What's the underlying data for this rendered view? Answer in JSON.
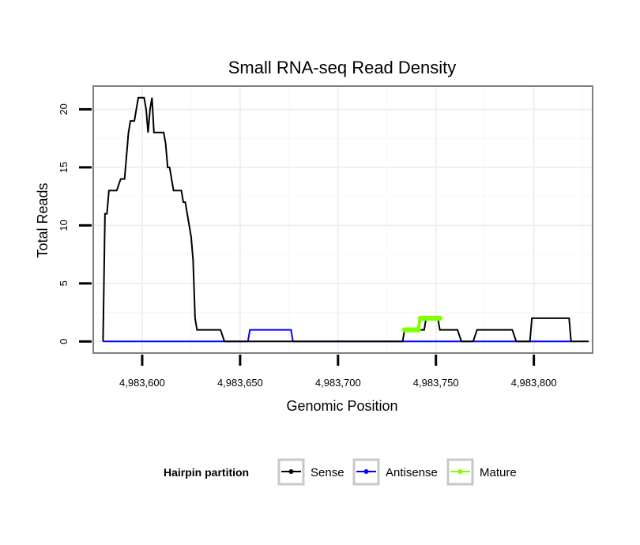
{
  "chart_data": {
    "type": "line",
    "title": "Small RNA-seq Read Density",
    "xlabel": "Genomic Position",
    "ylabel": "Total Reads",
    "xlim": [
      4983575,
      4983830
    ],
    "ylim": [
      -1,
      22
    ],
    "x_ticks": [
      4983600,
      4983650,
      4983700,
      4983750,
      4983800
    ],
    "x_tick_labels": [
      "4,983,600",
      "4,983,650",
      "4,983,700",
      "4,983,750",
      "4,983,800"
    ],
    "y_ticks": [
      0,
      5,
      10,
      15,
      20
    ],
    "y_tick_labels": [
      "0",
      "5",
      "10",
      "15",
      "20"
    ],
    "grid": true,
    "legend": {
      "title": "Hairpin partition",
      "position": "bottom",
      "entries": [
        "Sense",
        "Antisense",
        "Mature"
      ]
    },
    "series": [
      {
        "name": "Sense",
        "color": "#000000",
        "x": [
          4983580,
          4983581,
          4983582,
          4983583,
          4983585,
          4983587,
          4983589,
          4983590,
          4983591,
          4983592,
          4983593,
          4983594,
          4983596,
          4983597,
          4983598,
          4983599,
          4983600,
          4983601,
          4983602,
          4983603,
          4983604,
          4983605,
          4983606,
          4983607,
          4983611,
          4983612,
          4983613,
          4983614,
          4983615,
          4983616,
          4983618,
          4983619,
          4983620,
          4983621,
          4983622,
          4983623,
          4983624,
          4983625,
          4983626,
          4983627,
          4983628,
          4983629,
          4983630,
          4983632,
          4983635,
          4983640,
          4983642,
          4983645,
          4983660,
          4983680,
          4983700,
          4983720,
          4983733,
          4983734,
          4983744,
          4983745,
          4983751,
          4983752,
          4983755,
          4983760,
          4983761,
          4983763,
          4983769,
          4983771,
          4983780,
          4983789,
          4983791,
          4983798,
          4983799,
          4983810,
          4983818,
          4983819,
          4983828
        ],
        "y": [
          0,
          11,
          11,
          13,
          13,
          13,
          14,
          14,
          14,
          16,
          18,
          19,
          19,
          20,
          21,
          21,
          21,
          21,
          20,
          18,
          20,
          21,
          18,
          18,
          18,
          17,
          15,
          15,
          14,
          13,
          13,
          13,
          13,
          12,
          12,
          11,
          10,
          9,
          7,
          2,
          1,
          1,
          1,
          1,
          1,
          1,
          0,
          0,
          0,
          0,
          0,
          0,
          0,
          1,
          1,
          2,
          2,
          1,
          1,
          1,
          1,
          0,
          0,
          1,
          1,
          1,
          0,
          0,
          2,
          2,
          2,
          0,
          0
        ]
      },
      {
        "name": "Antisense",
        "color": "#0000ff",
        "x": [
          4983580,
          4983654,
          4983655,
          4983676,
          4983677,
          4983820
        ],
        "y": [
          0,
          0,
          1,
          1,
          0,
          0
        ]
      },
      {
        "name": "Mature",
        "color": "#7fff00",
        "x": [
          4983734,
          4983735,
          4983736,
          4983737,
          4983738,
          4983739,
          4983740,
          4983741,
          4983742,
          4983743,
          4983744,
          4983745,
          4983746,
          4983747,
          4983748,
          4983749,
          4983750,
          4983751,
          4983752
        ],
        "y": [
          1,
          1,
          1,
          1,
          1,
          1,
          1,
          1,
          2,
          2,
          2,
          2,
          2,
          2,
          2,
          2,
          2,
          2,
          2
        ]
      }
    ]
  }
}
